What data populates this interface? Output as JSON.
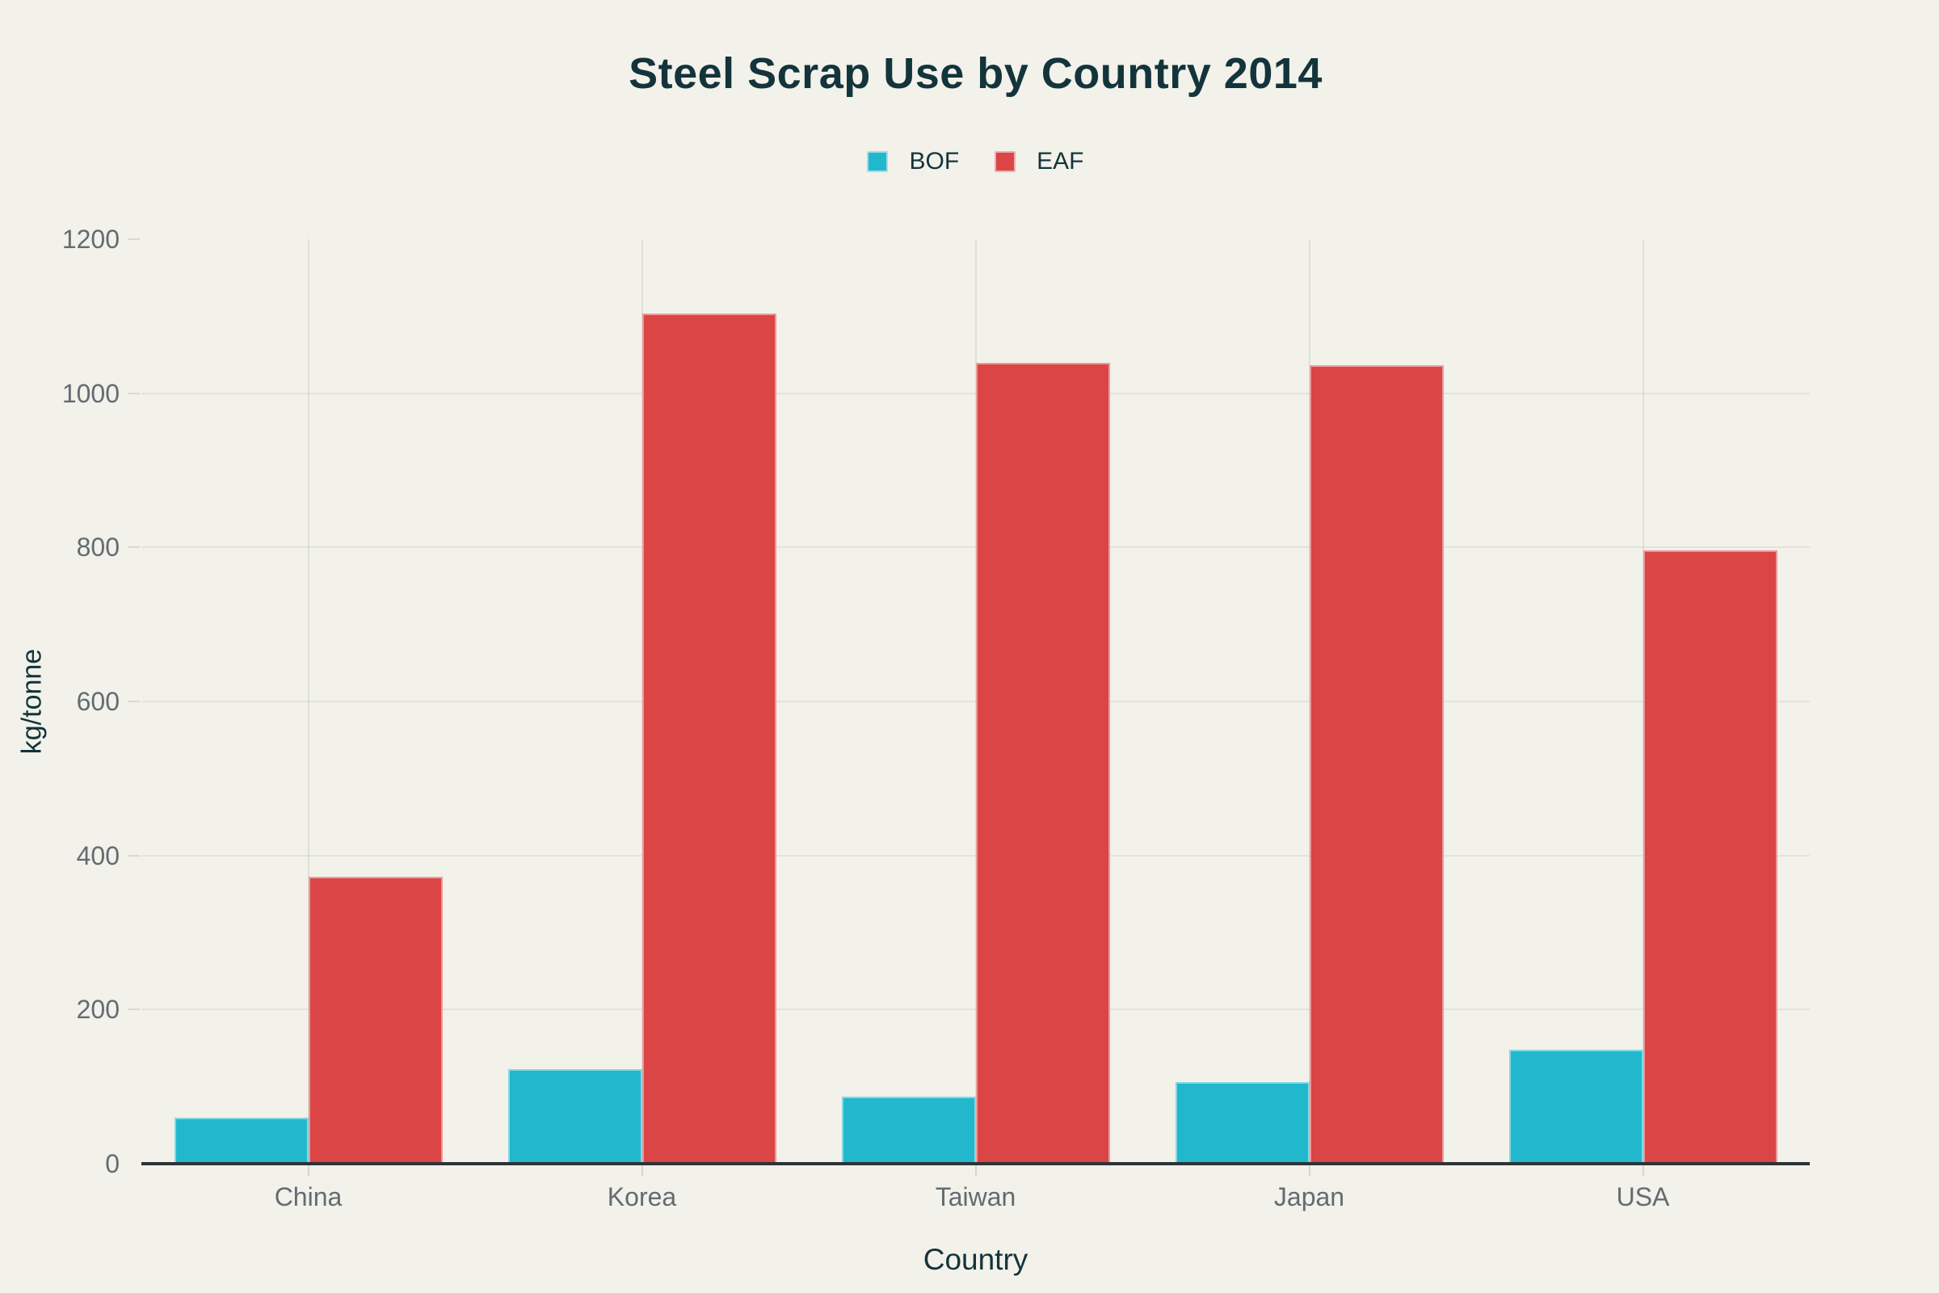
{
  "chart_data": {
    "type": "bar",
    "title": "Steel Scrap Use by Country 2014",
    "xlabel": "Country",
    "ylabel": "kg/tonne",
    "categories": [
      "China",
      "Korea",
      "Taiwan",
      "Japan",
      "USA"
    ],
    "series": [
      {
        "name": "BOF",
        "color": "#21B8CD",
        "values": [
          60,
          123,
          87,
          106,
          148
        ]
      },
      {
        "name": "EAF",
        "color": "#DB4545",
        "values": [
          372,
          1104,
          1040,
          1036,
          796
        ]
      }
    ],
    "ylim": [
      0,
      1200
    ],
    "ytick_step": 200,
    "ytick_labels": [
      "0",
      "200",
      "400",
      "600",
      "800",
      "1000",
      "1200"
    ],
    "grid": true,
    "legend_position": "top-center"
  },
  "colors": {
    "background": "#F2F1EA",
    "title_text": "#13343B",
    "tick_text": "#626C71",
    "axis_line": "#2E3338",
    "bof": "#21B8CD",
    "eaf": "#DB4545"
  }
}
